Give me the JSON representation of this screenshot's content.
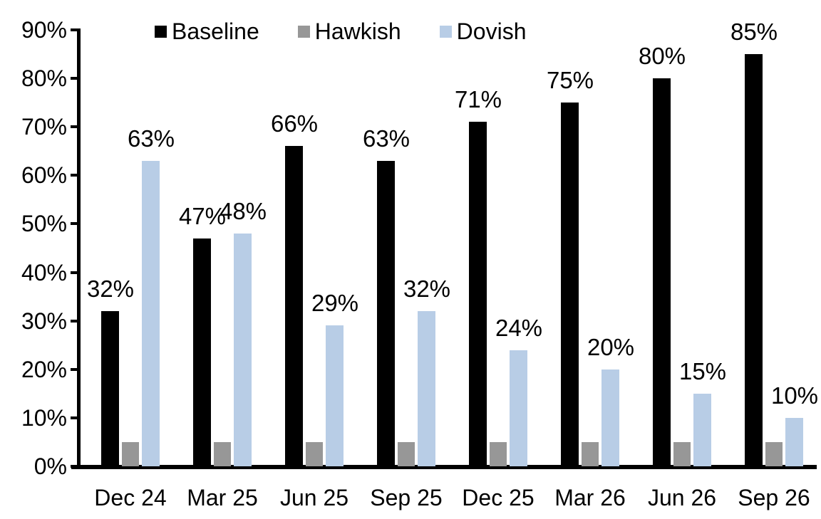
{
  "chart_data": {
    "type": "bar",
    "title": "",
    "categories": [
      "Dec 24",
      "Mar 25",
      "Jun 25",
      "Sep 25",
      "Dec 25",
      "Mar 26",
      "Jun 26",
      "Sep 26"
    ],
    "series": [
      {
        "name": "Baseline",
        "color": "#000000",
        "show_labels": true,
        "values": [
          32,
          47,
          66,
          63,
          71,
          75,
          80,
          85
        ]
      },
      {
        "name": "Hawkish",
        "color": "#979797",
        "show_labels": false,
        "values": [
          5,
          5,
          5,
          5,
          5,
          5,
          5,
          5
        ]
      },
      {
        "name": "Dovish",
        "color": "#B8CDE6",
        "show_labels": true,
        "values": [
          63,
          48,
          29,
          32,
          24,
          20,
          15,
          10
        ]
      }
    ],
    "xlabel": "",
    "ylabel": "",
    "ylim": [
      0,
      90
    ],
    "ytick_step": 10,
    "ytick_labels": [
      "0%",
      "10%",
      "20%",
      "30%",
      "40%",
      "50%",
      "60%",
      "70%",
      "80%",
      "90%"
    ],
    "value_suffix": "%",
    "legend_position": "top",
    "grid": false,
    "background_color": "#FFFFFF",
    "axis_color": "#000000",
    "text_color": "#000000"
  }
}
